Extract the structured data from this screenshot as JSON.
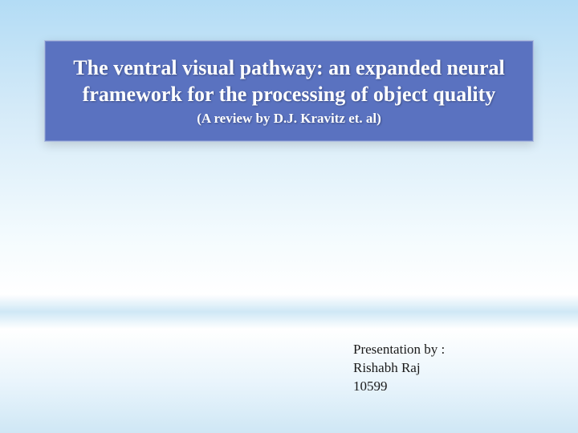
{
  "title_box": {
    "background_color": "#5a72c0",
    "border_color": "#b0c0e0",
    "text_color": "#ffffff",
    "main_title": "The ventral visual pathway: an expanded neural framework for the processing of object quality",
    "main_fontsize": 26,
    "subtitle": "(A review by D.J. Kravitz et. al)",
    "subtitle_fontsize": 17
  },
  "presenter": {
    "line1": "Presentation by :",
    "line2": "Rishabh Raj",
    "line3": "10599",
    "fontsize": 17,
    "text_color": "#1a1a1a"
  },
  "background": {
    "gradient_top": "#b3dcf5",
    "gradient_mid": "#ffffff",
    "gradient_horizon": "#cfe8f6",
    "gradient_bottom": "#cfe7f5"
  }
}
